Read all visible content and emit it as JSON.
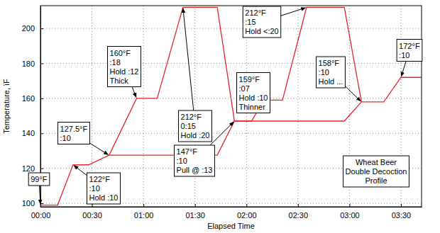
{
  "chart_data": {
    "type": "line",
    "xlabel": "Elapsed Time",
    "ylabel": "Temperature, ïF",
    "x": [
      0,
      10,
      19,
      28,
      40,
      56,
      68,
      83,
      103,
      113,
      123,
      130,
      141,
      155,
      177,
      187,
      200,
      210,
      222
    ],
    "xlim": [
      0,
      222
    ],
    "xticks": [
      {
        "value": 0,
        "label": "00:00"
      },
      {
        "value": 30,
        "label": "00:30"
      },
      {
        "value": 60,
        "label": "01:00"
      },
      {
        "value": 90,
        "label": "01:30"
      },
      {
        "value": 120,
        "label": "02:00"
      },
      {
        "value": 150,
        "label": "02:30"
      },
      {
        "value": 180,
        "label": "03:00"
      },
      {
        "value": 210,
        "label": "03:30"
      }
    ],
    "ylim": [
      98,
      213
    ],
    "yticks": [
      100,
      120,
      140,
      160,
      180,
      200
    ],
    "grid": true,
    "series": [
      {
        "color": "#e8242a",
        "values": [
          99,
          99,
          122,
          122,
          127.5,
          127.5,
          127.5,
          127.5,
          127.5,
          147,
          147,
          147,
          147,
          147,
          147,
          158,
          158,
          172,
          172
        ]
      },
      {
        "color": "#e8242a",
        "values": [
          null,
          null,
          null,
          null,
          127.5,
          160,
          160,
          212,
          212,
          147,
          147,
          159,
          159,
          212,
          212,
          158,
          null,
          null,
          null
        ]
      }
    ],
    "annotations": [
      {
        "text": [
          "99°F"
        ],
        "x": 0,
        "y": 99
      },
      {
        "text": [
          "127.5°F",
          ":10"
        ],
        "x": 40,
        "y": 127.5
      },
      {
        "text": [
          "122°F",
          ":10",
          "Hold :10"
        ],
        "x": 19,
        "y": 122
      },
      {
        "text": [
          "160°F",
          ":18",
          "Hold :12",
          "Thick"
        ],
        "x": 56,
        "y": 160
      },
      {
        "text": [
          "212°F",
          "0:15",
          "Hold :20"
        ],
        "x": 83,
        "y": 212
      },
      {
        "text": [
          "147°F",
          ":10",
          "Pull @ :13"
        ],
        "x": 113,
        "y": 147
      },
      {
        "text": [
          "159°F",
          ":07",
          "Hold :10",
          "Thinner"
        ],
        "x": 130,
        "y": 159
      },
      {
        "text": [
          "212°F",
          ":15",
          "Hold <:20"
        ],
        "x": 155,
        "y": 212
      },
      {
        "text": [
          "158°F",
          ":10",
          "Hold ..."
        ],
        "x": 187,
        "y": 158
      },
      {
        "text": [
          "172°F",
          ":10"
        ],
        "x": 210,
        "y": 172
      }
    ],
    "note": [
      "Wheat Beer",
      "Double Decoction",
      "Profile"
    ]
  }
}
